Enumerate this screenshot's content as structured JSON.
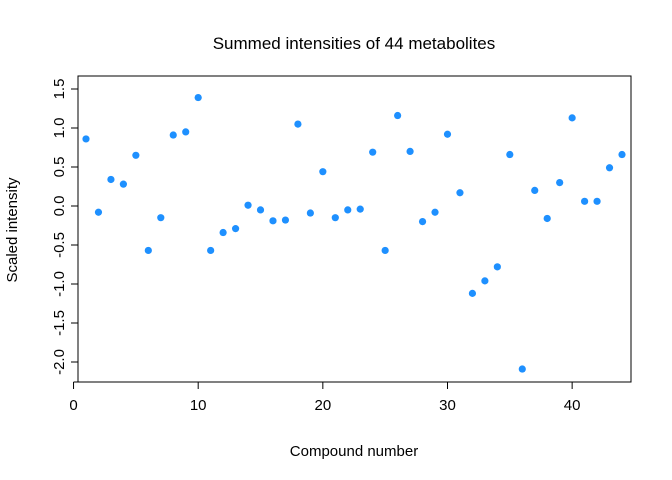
{
  "chart_data": {
    "type": "scatter",
    "title": "Summed intensities of 44 metabolites",
    "xlabel": "Compound number",
    "ylabel": "Scaled intensity",
    "xlim": [
      0,
      45
    ],
    "ylim": [
      -2.1,
      1.5
    ],
    "xticks": [
      0,
      10,
      20,
      30,
      40
    ],
    "xtick_labels": [
      "0",
      "10",
      "20",
      "30",
      "40"
    ],
    "yticks": [
      -2.0,
      -1.5,
      -1.0,
      -0.5,
      0.0,
      0.5,
      1.0,
      1.5
    ],
    "ytick_labels": [
      "-2.0",
      "-1.5",
      "-1.0",
      "-0.5",
      "0.0",
      "0.5",
      "1.0",
      "1.5"
    ],
    "grid": false,
    "point_color": "#1E90FF",
    "x": [
      1,
      2,
      3,
      4,
      5,
      6,
      7,
      8,
      9,
      10,
      11,
      12,
      13,
      14,
      15,
      16,
      17,
      18,
      19,
      20,
      21,
      22,
      23,
      24,
      25,
      26,
      27,
      28,
      29,
      30,
      31,
      32,
      33,
      34,
      35,
      36,
      37,
      38,
      39,
      40,
      41,
      42,
      43,
      44
    ],
    "y": [
      0.86,
      -0.08,
      0.34,
      0.28,
      0.65,
      -0.57,
      -0.15,
      0.91,
      0.95,
      1.39,
      -0.57,
      -0.34,
      -0.29,
      0.01,
      -0.05,
      -0.19,
      -0.18,
      1.05,
      -0.09,
      0.44,
      -0.15,
      -0.05,
      -0.04,
      0.69,
      -0.57,
      1.16,
      0.7,
      -0.2,
      -0.08,
      0.92,
      0.17,
      -1.12,
      -0.96,
      -0.78,
      0.66,
      -2.09,
      0.2,
      -0.16,
      0.3,
      1.13,
      0.06,
      0.06,
      0.49,
      0.66
    ]
  }
}
